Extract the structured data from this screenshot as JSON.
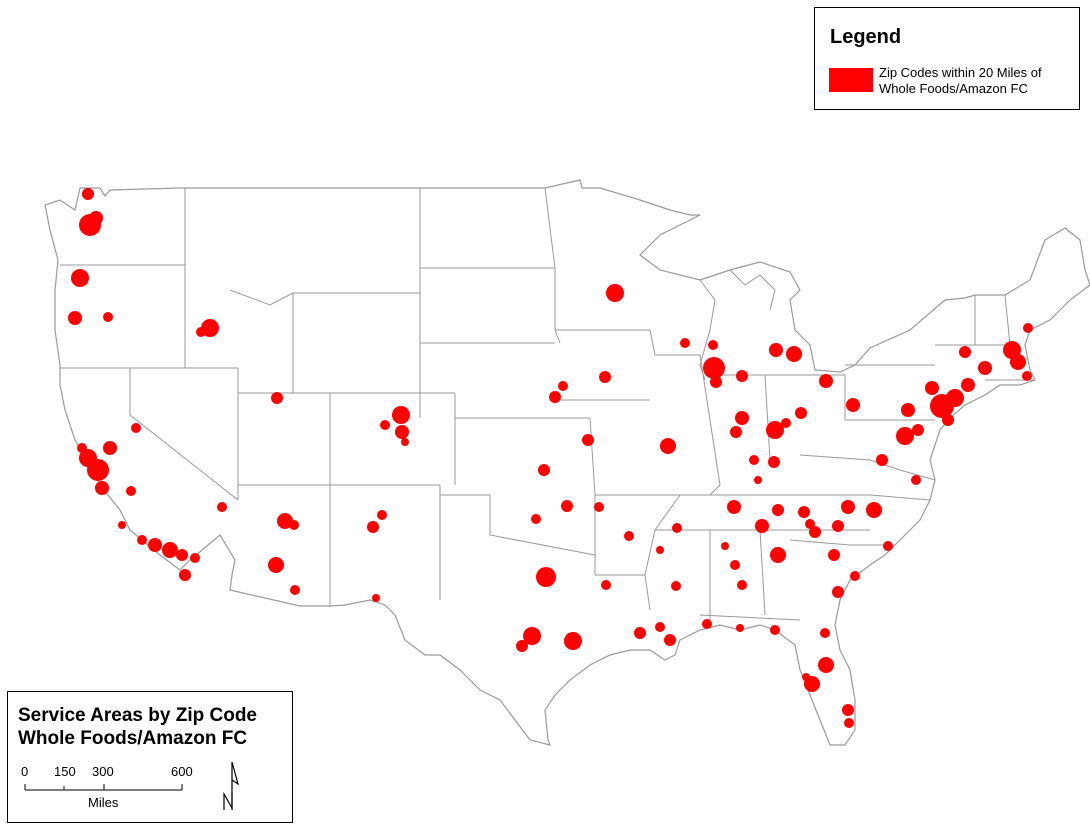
{
  "legend": {
    "title": "Legend",
    "item_label_line1": "Zip Codes within 20 Miles of",
    "item_label_line2": "Whole Foods/Amazon FC",
    "item_color": "#ff0000"
  },
  "map_title": {
    "line1": "Service Areas by Zip Code",
    "line2": "Whole Foods/Amazon FC"
  },
  "scale_bar": {
    "ticks": [
      "0",
      "150",
      "300",
      "600"
    ],
    "unit": "Miles"
  },
  "north_arrow": {
    "label": "N"
  },
  "colors": {
    "service_area": "#ff0000",
    "state_border": "#9a9a9a",
    "background": "#ffffff"
  },
  "icons": [
    "north-arrow-icon"
  ]
}
